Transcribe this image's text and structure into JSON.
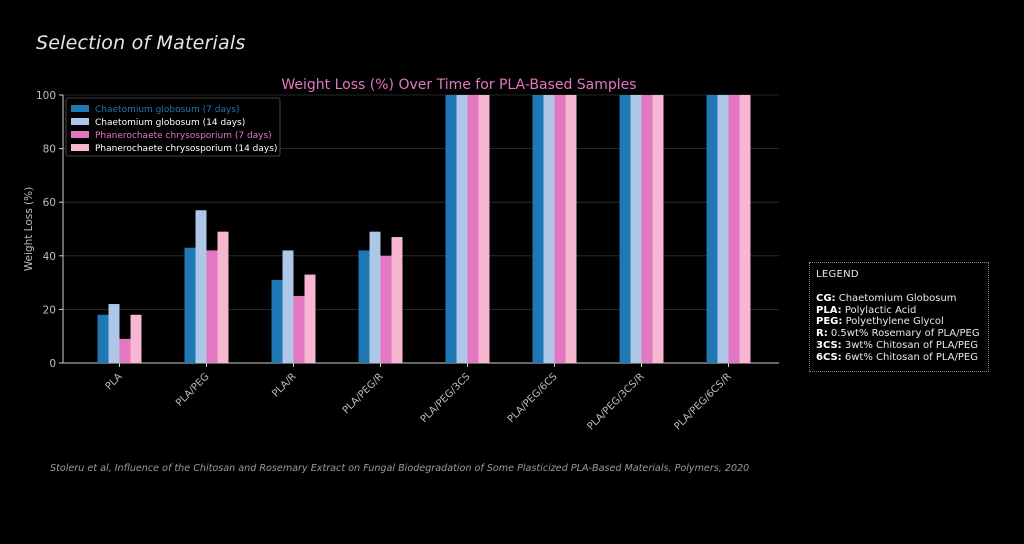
{
  "page": {
    "title": "Selection of Materials",
    "source": "Stoleru et al, Influence of the Chitosan and Rosemary Extract on Fungal Biodegradation of Some Plasticized PLA-Based Materials, Polymers, 2020"
  },
  "abbrev_legend": {
    "heading": "LEGEND",
    "items": [
      {
        "key": "CG:",
        "desc": "Chaetomium Globosum"
      },
      {
        "key": "PLA:",
        "desc": "Polylactic Acid"
      },
      {
        "key": "PEG:",
        "desc": "Polyethylene Glycol"
      },
      {
        "key": "R:",
        "desc": "0.5wt% Rosemary of PLA/PEG"
      },
      {
        "key": "3CS:",
        "desc": "3wt% Chitosan of PLA/PEG"
      },
      {
        "key": "6CS:",
        "desc": "6wt% Chitosan of PLA/PEG"
      }
    ]
  },
  "chart_data": {
    "type": "bar",
    "title": "Weight Loss (%) Over Time for PLA-Based Samples",
    "xlabel": "",
    "ylabel": "Weight Loss (%)",
    "ylim": [
      0,
      100
    ],
    "yticks": [
      0,
      20,
      40,
      60,
      80,
      100
    ],
    "grid": true,
    "legend_position": "top-left",
    "categories": [
      "PLA",
      "PLA/PEG",
      "PLA/R",
      "PLA/PEG/R",
      "PLA/PEG/3CS",
      "PLA/PEG/6CS",
      "PLA/PEG/3CS/R",
      "PLA/PEG/6CS/R"
    ],
    "series": [
      {
        "name": "Chaetomium globosum (7 days)",
        "color": "#1f77b4",
        "values": [
          18,
          43,
          31,
          42,
          100,
          100,
          100,
          100
        ]
      },
      {
        "name": "Chaetomium globosum (14 days)",
        "color": "#aec7e8",
        "values": [
          22,
          57,
          42,
          49,
          100,
          100,
          100,
          100
        ]
      },
      {
        "name": "Phanerochaete chrysosporium (7 days)",
        "color": "#e377c2",
        "values": [
          9,
          42,
          25,
          40,
          100,
          100,
          100,
          100
        ]
      },
      {
        "name": "Phanerochaete chrysosporium (14 days)",
        "color": "#f7b6d2",
        "values": [
          18,
          49,
          33,
          47,
          100,
          100,
          100,
          100
        ]
      }
    ],
    "colors": {
      "title": "#e377c2",
      "axis": "#cfcfcf",
      "grid": "#333333",
      "tick_label": "#bdbdbd",
      "legend_text": [
        "#1f77b4",
        "#ffffff",
        "#e377c2",
        "#ffffff"
      ]
    }
  }
}
